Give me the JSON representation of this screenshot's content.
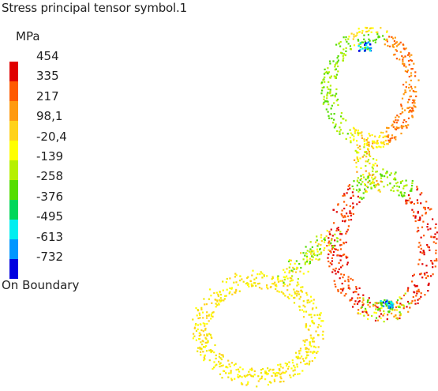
{
  "legend": {
    "title": "Stress principal tensor symbol.1",
    "unit": "MPa",
    "ticks": [
      "454",
      "335",
      "217",
      "98,1",
      "-20,4",
      "-139",
      "-258",
      "-376",
      "-495",
      "-613",
      "-732"
    ],
    "colors": [
      "#e00000",
      "#ff5a00",
      "#ff9a10",
      "#ffd21a",
      "#ffff00",
      "#b6f000",
      "#55dd00",
      "#00d75a",
      "#00eef0",
      "#0096ff",
      "#0000e0"
    ],
    "footer": "On Boundary"
  },
  "plot": {
    "parts": [
      {
        "name": "top-ring",
        "palette": [
          "#ffd21a",
          "#ffff00",
          "#ff9a10",
          "#b6f000"
        ]
      },
      {
        "name": "right-ring",
        "palette": [
          "#ffff00",
          "#ff9a10",
          "#b6f000",
          "#55dd00",
          "#ff5a00",
          "#e00000"
        ]
      },
      {
        "name": "left-ring",
        "palette": [
          "#ffff00",
          "#ffd21a",
          "#f0e800"
        ]
      }
    ]
  }
}
